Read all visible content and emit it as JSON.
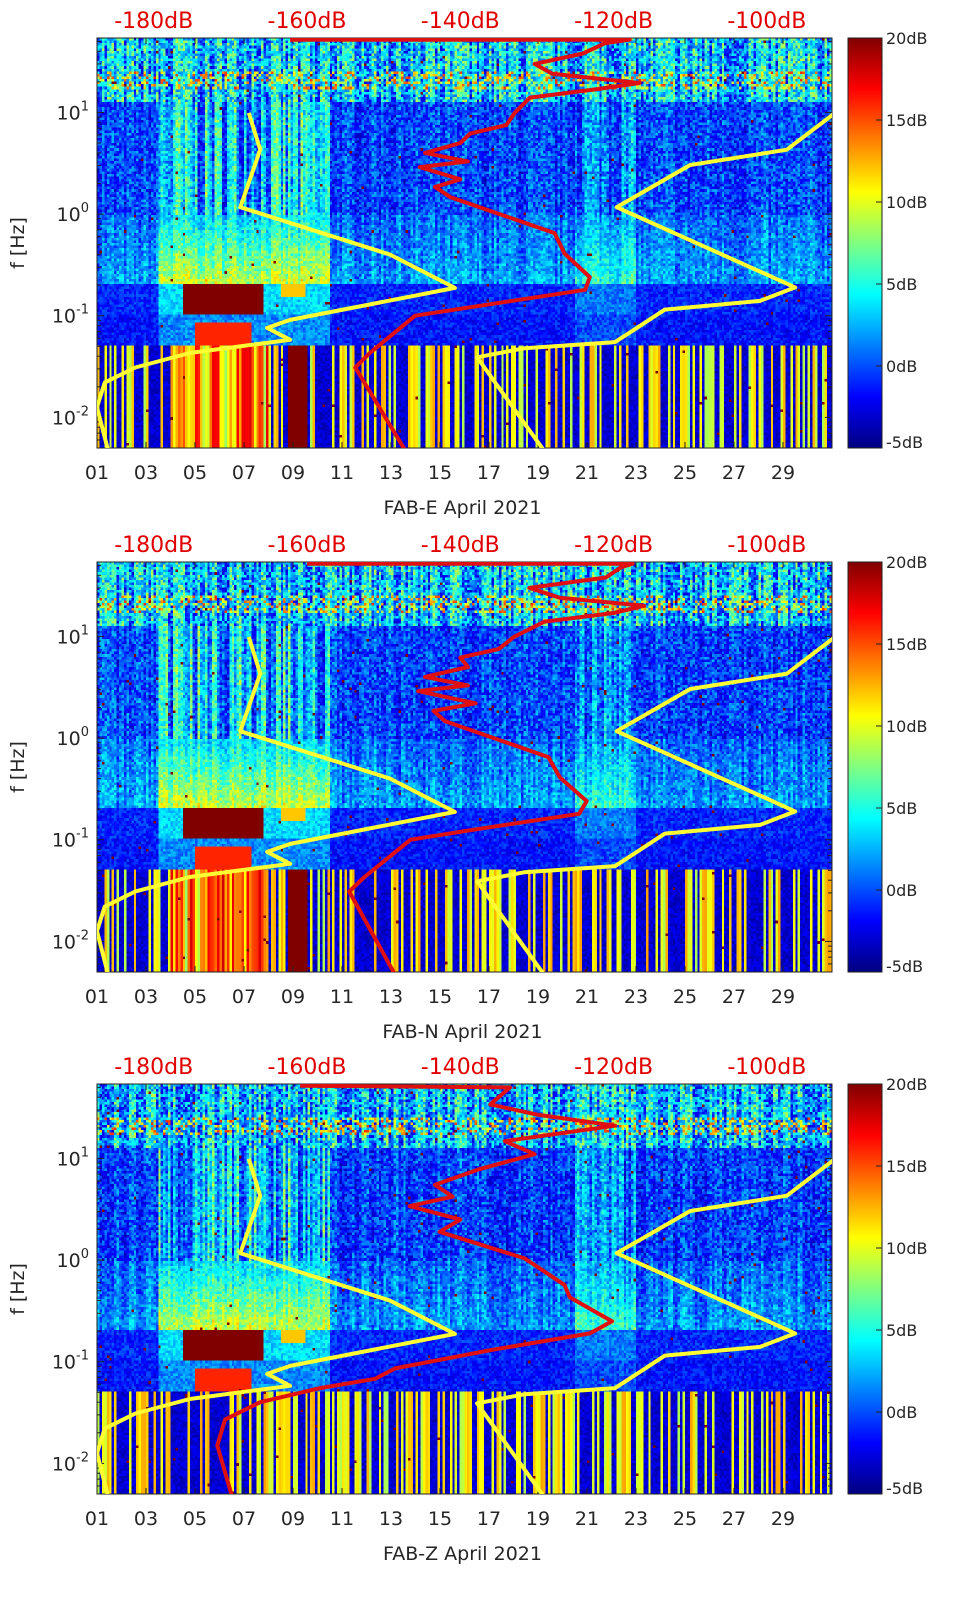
{
  "chart_data": {
    "type": "heatmap",
    "subtype": "spectrogram with PSD overlay",
    "x_axis": {
      "ticks": [
        "01",
        "03",
        "05",
        "07",
        "09",
        "11",
        "13",
        "15",
        "17",
        "19",
        "21",
        "23",
        "25",
        "27",
        "29"
      ],
      "tick_days": [
        1,
        3,
        5,
        7,
        9,
        11,
        13,
        15,
        17,
        19,
        21,
        23,
        25,
        27,
        29
      ],
      "range_days": [
        1,
        31
      ]
    },
    "y_axis": {
      "label": "f [Hz]",
      "scale": "log",
      "range_hz": [
        0.005,
        54
      ],
      "ticks": [
        {
          "base": "10",
          "exp": "-2",
          "value": 0.01
        },
        {
          "base": "10",
          "exp": "-1",
          "value": 0.1
        },
        {
          "base": "10",
          "exp": "0",
          "value": 1
        },
        {
          "base": "10",
          "exp": "1",
          "value": 10
        }
      ]
    },
    "top_axis": {
      "labels": [
        "-180dB",
        "-160dB",
        "-140dB",
        "-120dB",
        "-100dB"
      ],
      "values": [
        -180,
        -160,
        -140,
        -120,
        -100
      ],
      "range_db": [
        -187.4,
        -91.5
      ],
      "color": "#e00000"
    },
    "colorbar": {
      "colormap": "jet",
      "range_db": [
        -5,
        20
      ],
      "ticks": [
        "20dB",
        "15dB",
        "10dB",
        "5dB",
        "0dB",
        "-5dB"
      ],
      "tick_values": [
        20,
        15,
        10,
        5,
        0,
        -5
      ]
    },
    "models": {
      "color": "#ffff33",
      "nlnm": [
        [
          0.004,
          -185.7
        ],
        [
          0.0126,
          -187.4
        ],
        [
          0.022,
          -186.4
        ],
        [
          0.031,
          -182.4
        ],
        [
          0.043,
          -175.3
        ],
        [
          0.058,
          -162.2
        ],
        [
          0.076,
          -165.2
        ],
        [
          0.091,
          -162.2
        ],
        [
          0.188,
          -140.7
        ],
        [
          0.4,
          -149.2
        ],
        [
          1.17,
          -168.7
        ],
        [
          4.3,
          -166.1
        ],
        [
          9.9,
          -167.6
        ]
      ],
      "nhnm": [
        [
          0.004,
          -128.4
        ],
        [
          0.039,
          -137.8
        ],
        [
          0.048,
          -131.6
        ],
        [
          0.055,
          -119.8
        ],
        [
          0.115,
          -113.3
        ],
        [
          0.14,
          -100.9
        ],
        [
          0.19,
          -96.3
        ],
        [
          1.17,
          -119.6
        ],
        [
          3.04,
          -110
        ],
        [
          4.3,
          -97.4
        ],
        [
          9.9,
          -91.1
        ]
      ]
    },
    "psd_color": "#e01010",
    "panels": [
      {
        "xlabel": "FAB-E April 2021",
        "psd": [
          [
            0.004,
            -146.6
          ],
          [
            0.031,
            -153.7
          ],
          [
            0.043,
            -151.8
          ],
          [
            0.1,
            -145.9
          ],
          [
            0.13,
            -136.1
          ],
          [
            0.18,
            -123.7
          ],
          [
            0.24,
            -123.1
          ],
          [
            0.41,
            -126.4
          ],
          [
            0.65,
            -127.7
          ],
          [
            1.47,
            -141.3
          ],
          [
            1.85,
            -143.3
          ],
          [
            2.2,
            -140
          ],
          [
            2.9,
            -145.3
          ],
          [
            3.3,
            -139
          ],
          [
            4.0,
            -144.6
          ],
          [
            5,
            -140
          ],
          [
            6.2,
            -138.7
          ],
          [
            7.5,
            -134
          ],
          [
            9.9,
            -132.9
          ],
          [
            14,
            -130.9
          ],
          [
            17,
            -122
          ],
          [
            19.5,
            -116.6
          ],
          [
            24,
            -128
          ],
          [
            30,
            -130.3
          ],
          [
            38,
            -124
          ],
          [
            48,
            -121.1
          ],
          [
            52,
            -117.9
          ],
          [
            52,
            -162.2
          ]
        ]
      },
      {
        "xlabel": "FAB-N April 2021",
        "psd": [
          [
            0.004,
            -148
          ],
          [
            0.031,
            -154.5
          ],
          [
            0.043,
            -152.5
          ],
          [
            0.1,
            -146.5
          ],
          [
            0.13,
            -137
          ],
          [
            0.18,
            -124.5
          ],
          [
            0.24,
            -123.5
          ],
          [
            0.41,
            -127
          ],
          [
            0.65,
            -128.5
          ],
          [
            1.47,
            -142
          ],
          [
            1.85,
            -143.5
          ],
          [
            2.2,
            -138
          ],
          [
            2.9,
            -145.5
          ],
          [
            3.3,
            -139
          ],
          [
            4.0,
            -144.6
          ],
          [
            5,
            -139
          ],
          [
            6.2,
            -140
          ],
          [
            7.5,
            -135
          ],
          [
            9.9,
            -133
          ],
          [
            14,
            -129
          ],
          [
            17,
            -120
          ],
          [
            20,
            -116
          ],
          [
            24,
            -127
          ],
          [
            30,
            -131
          ],
          [
            38,
            -121
          ],
          [
            48,
            -119
          ],
          [
            52,
            -117.5
          ],
          [
            52,
            -160
          ]
        ]
      },
      {
        "xlabel": "FAB-Z April 2021",
        "psd": [
          [
            0.004,
            -169.5
          ],
          [
            0.015,
            -171.7
          ],
          [
            0.027,
            -170.7
          ],
          [
            0.04,
            -166.1
          ],
          [
            0.055,
            -158.3
          ],
          [
            0.068,
            -151.1
          ],
          [
            0.086,
            -148.5
          ],
          [
            0.13,
            -136.1
          ],
          [
            0.19,
            -123.1
          ],
          [
            0.25,
            -120.2
          ],
          [
            0.31,
            -122.4
          ],
          [
            0.43,
            -125.7
          ],
          [
            0.57,
            -126.4
          ],
          [
            1.04,
            -131.6
          ],
          [
            1.9,
            -142.7
          ],
          [
            2.5,
            -140
          ],
          [
            3.4,
            -146.6
          ],
          [
            4.2,
            -141
          ],
          [
            5.5,
            -143.3
          ],
          [
            7.9,
            -137.4
          ],
          [
            11,
            -130.3
          ],
          [
            14.8,
            -134.2
          ],
          [
            21,
            -119.8
          ],
          [
            27,
            -130
          ],
          [
            34,
            -136.1
          ],
          [
            50,
            -133.5
          ],
          [
            52,
            -160.9
          ]
        ]
      }
    ]
  }
}
